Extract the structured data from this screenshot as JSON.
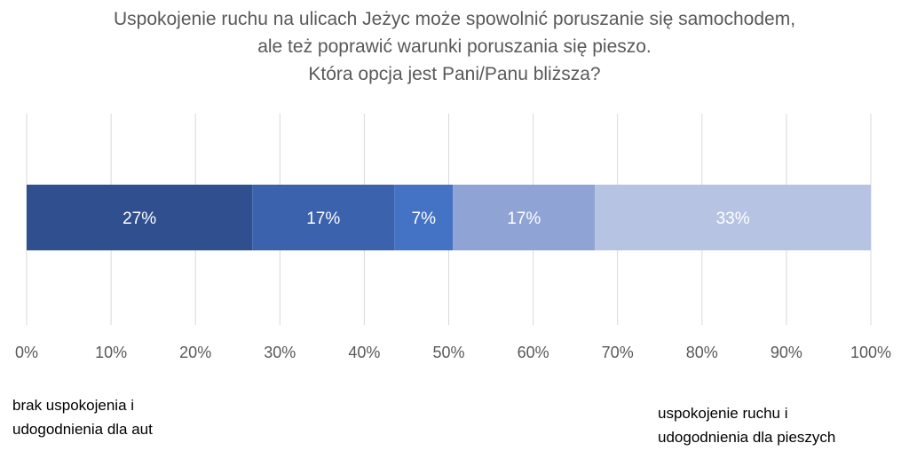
{
  "chart_data": {
    "type": "bar",
    "orientation": "horizontal",
    "stacked": true,
    "title_lines": [
      "Uspokojenie ruchu na ulicach Jeżyc może spowolnić poruszanie się samochodem,",
      "ale też poprawić warunki poruszania się pieszo.",
      "Która opcja jest Pani/Panu bliższa?"
    ],
    "series": [
      {
        "value": 27,
        "label": "27%",
        "color": "#2f4f8f"
      },
      {
        "value": 17,
        "label": "17%",
        "color": "#3a62ad"
      },
      {
        "value": 7,
        "label": "7%",
        "color": "#4472c4"
      },
      {
        "value": 17,
        "label": "17%",
        "color": "#8fa3d5"
      },
      {
        "value": 33,
        "label": "33%",
        "color": "#b7c3e2"
      }
    ],
    "x_ticks": [
      "0%",
      "10%",
      "20%",
      "30%",
      "40%",
      "50%",
      "60%",
      "70%",
      "80%",
      "90%",
      "100%"
    ],
    "xlim": [
      0,
      100
    ],
    "grid": true,
    "annotations": {
      "left": [
        "brak uspokojenia i",
        "udogodnienia dla aut"
      ],
      "right": [
        "uspokojenie ruchu i",
        "udogodnienia dla pieszych"
      ]
    }
  }
}
